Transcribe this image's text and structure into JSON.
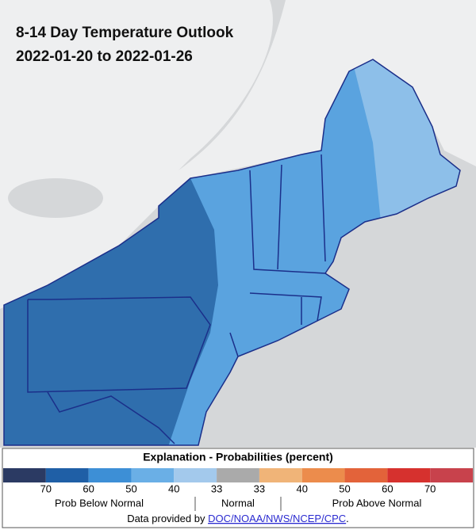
{
  "header": {
    "title": "8-14 Day Temperature Outlook",
    "subtitle": "2022-01-20 to 2022-01-26"
  },
  "legend": {
    "title": "Explanation - Probabilities (percent)",
    "swatches": [
      "#2b3a63",
      "#1f5fa6",
      "#3d8fd6",
      "#6aafe6",
      "#a3c9ec",
      "#aaaaaa",
      "#f0b478",
      "#ec8c4c",
      "#e3633a",
      "#d6312e",
      "#c8424c"
    ],
    "labels": [
      "70",
      "60",
      "50",
      "40",
      "33",
      "33",
      "40",
      "50",
      "60",
      "70"
    ],
    "groups": [
      "Prob Below Normal",
      "Normal",
      "Prob Above Normal"
    ]
  },
  "credit": {
    "prefix": "Data provided by",
    "link": "DOC/NOAA/NWS/NCEP/CPC",
    "suffix": "."
  }
}
